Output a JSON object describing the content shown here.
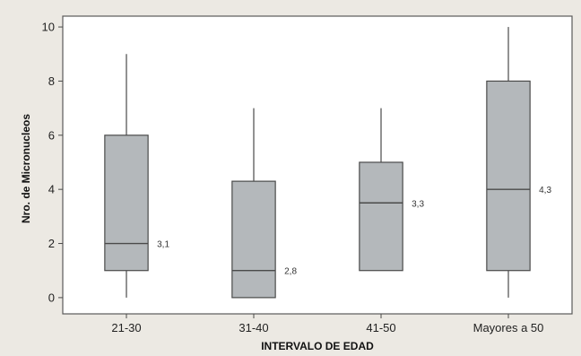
{
  "chart_data": {
    "type": "boxplot",
    "title": "",
    "xlabel": "INTERVALO DE EDAD",
    "ylabel": "Nro. de Micronucleos",
    "ylim": [
      -0.6,
      10.4
    ],
    "yticks": [
      0,
      2,
      4,
      6,
      8,
      10
    ],
    "grid": false,
    "categories": [
      "21-30",
      "31-40",
      "41-50",
      "Mayores a 50"
    ],
    "boxes": [
      {
        "category": "21-30",
        "min": 0,
        "q1": 1,
        "median": 2,
        "q3": 6,
        "max": 9,
        "label": "3,1"
      },
      {
        "category": "31-40",
        "min": 0,
        "q1": 0,
        "median": 1,
        "q3": 4.3,
        "max": 7,
        "label": "2,8"
      },
      {
        "category": "41-50",
        "min": 1,
        "q1": 1,
        "median": 3.5,
        "q3": 5,
        "max": 7,
        "label": "3,3"
      },
      {
        "category": "Mayores a 50",
        "min": 0,
        "q1": 1,
        "median": 4,
        "q3": 8,
        "max": 10,
        "label": "4,3"
      }
    ]
  }
}
